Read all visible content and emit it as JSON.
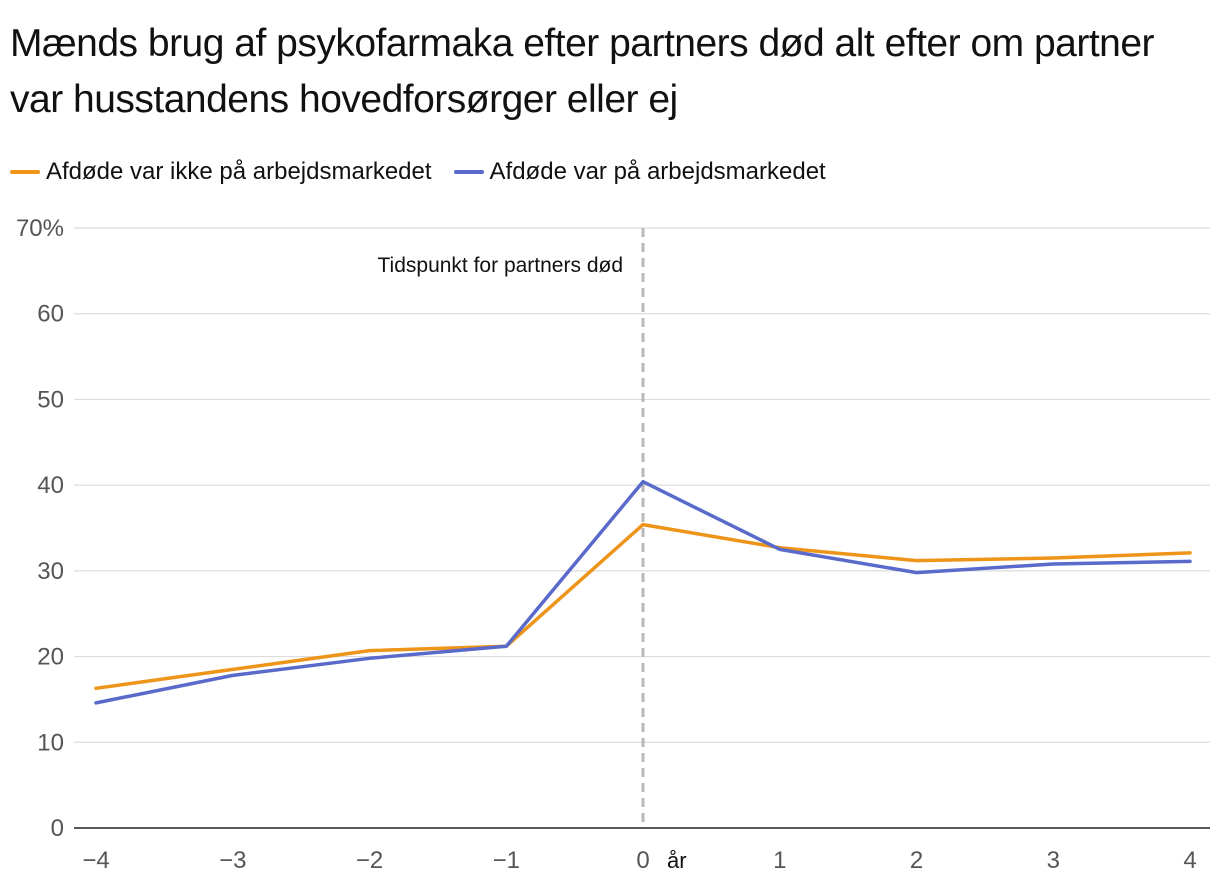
{
  "title": "Mænds brug af psykofarmaka efter partners død alt efter om partner var husstandens hovedforsørger eller ej",
  "chart_data": {
    "type": "line",
    "title": "Mænds brug af psykofarmaka efter partners død alt efter om partner var husstandens hovedforsørger eller ej",
    "x": [
      -4,
      -3,
      -2,
      -1,
      0,
      1,
      2,
      3,
      4
    ],
    "x_tick_labels": [
      "−4",
      "−3",
      "−2",
      "−1",
      "0",
      "1",
      "2",
      "3",
      "4"
    ],
    "x_unit_label": "år",
    "y_tick_labels": [
      "0",
      "10",
      "20",
      "30",
      "40",
      "50",
      "60",
      "70%"
    ],
    "y_ticks": [
      0,
      10,
      20,
      30,
      40,
      50,
      60,
      70
    ],
    "ylim": [
      0,
      70
    ],
    "xlim": [
      -4,
      4
    ],
    "grid": true,
    "legend_position": "top-left",
    "annotation": {
      "x": 0,
      "text": "Tidspunkt for partners død"
    },
    "series": [
      {
        "name": "Afdøde var ikke på arbejdsmarkedet",
        "color": "#ee9418",
        "values": [
          16.3,
          18.5,
          20.7,
          21.2,
          35.4,
          32.7,
          31.2,
          31.5,
          32.1
        ]
      },
      {
        "name": "Afdøde var på arbejdsmarkedet",
        "color": "#5a6acb",
        "values": [
          14.6,
          17.8,
          19.8,
          21.2,
          40.4,
          32.5,
          29.8,
          30.8,
          31.1
        ]
      }
    ]
  }
}
